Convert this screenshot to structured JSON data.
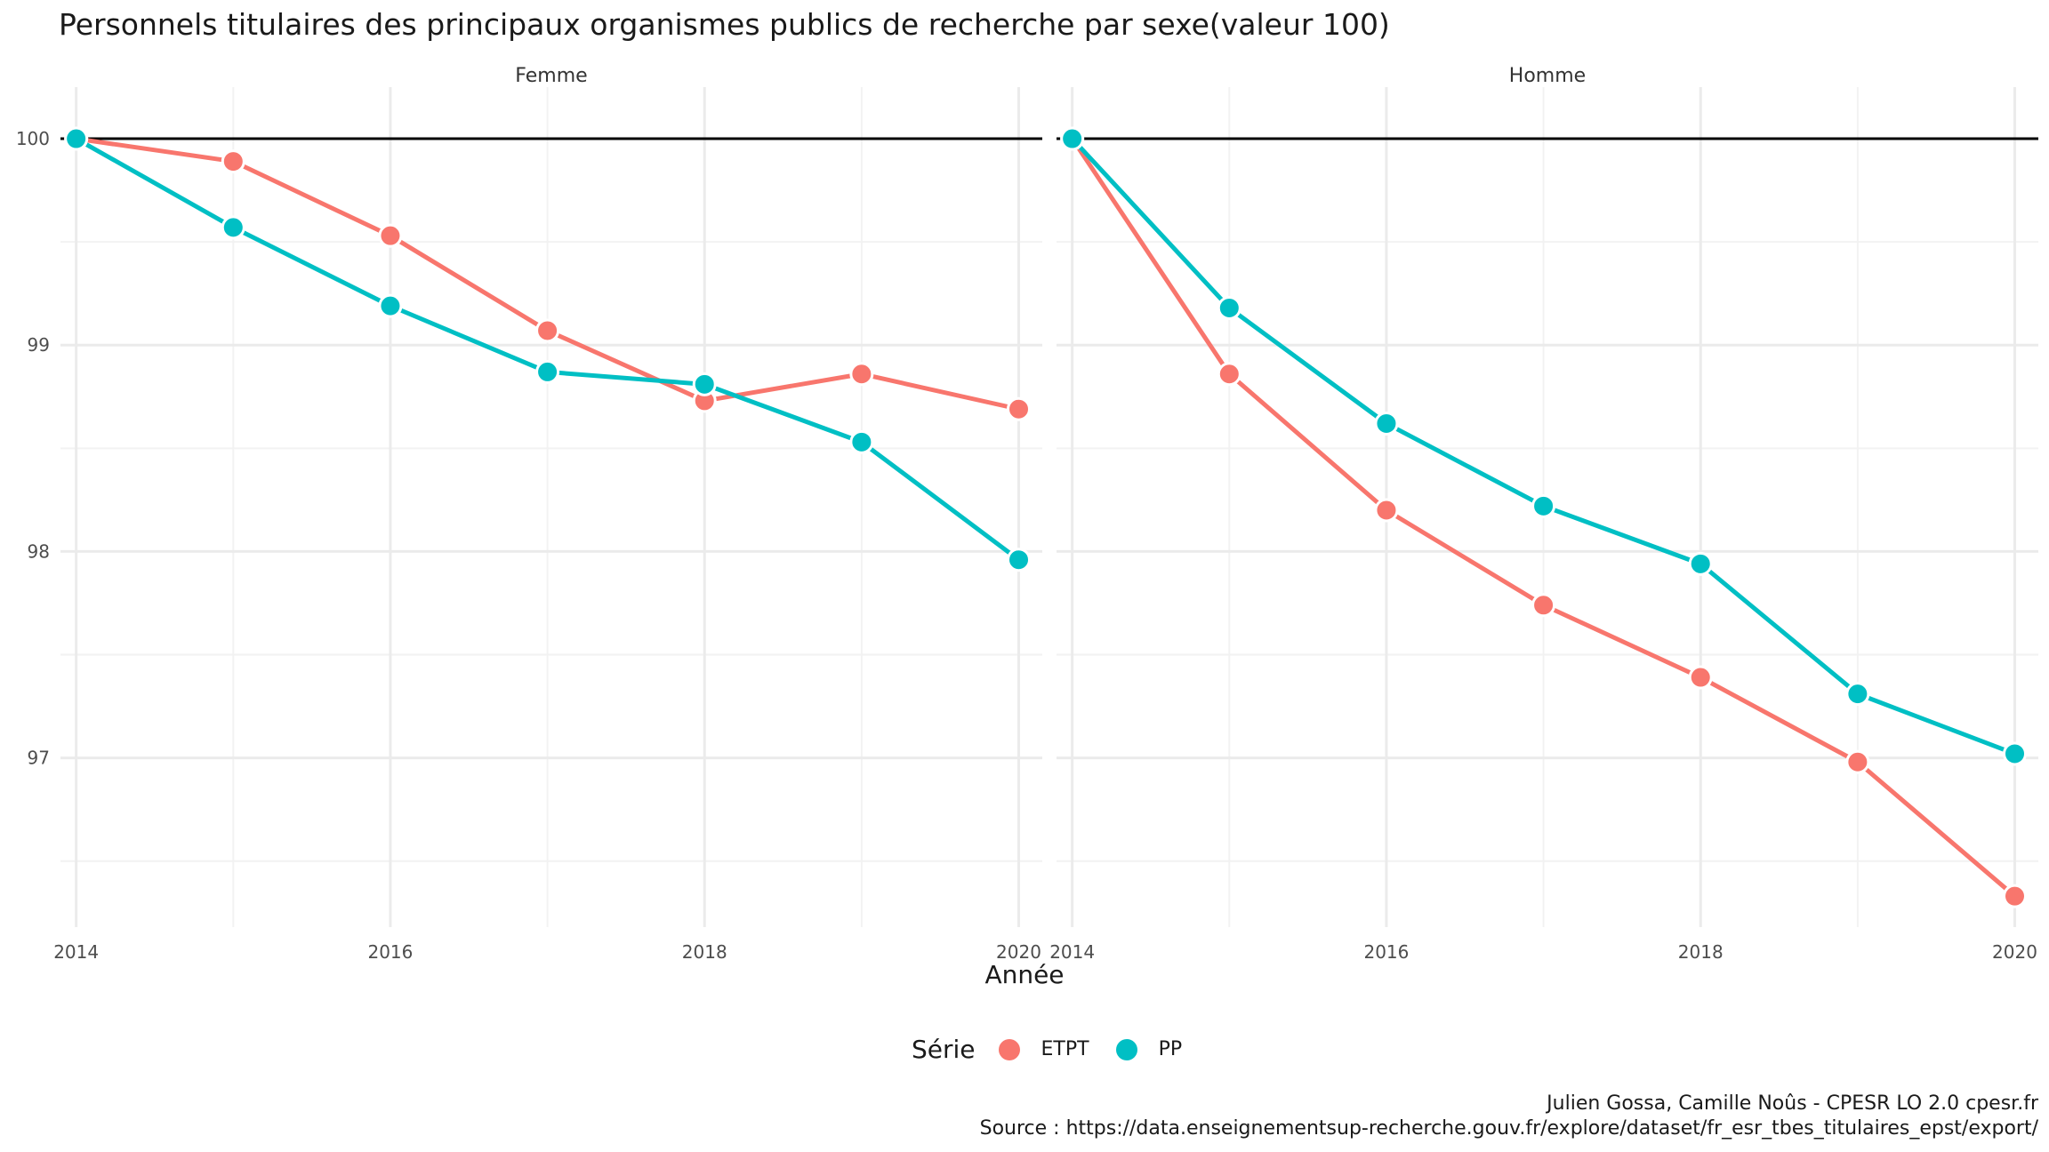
{
  "title": "Personnels titulaires des principaux organismes publics de recherche par sexe(valeur 100)",
  "xlabel": "Année",
  "legend": {
    "title": "Série",
    "items": [
      {
        "label": "ETPT",
        "color": "#F8766D"
      },
      {
        "label": "PP",
        "color": "#00BFC4"
      }
    ]
  },
  "caption": {
    "line1": "Julien Gossa, Camille Noûs - CPESR LO 2.0 cpesr.fr",
    "line2": "Source : https://data.enseignementsup-recherche.gouv.fr/explore/dataset/fr_esr_tbes_titulaires_epst/export/"
  },
  "chart_data": {
    "type": "line",
    "title": "Personnels titulaires des principaux organismes publics de recherche par sexe(valeur 100)",
    "xlabel": "Année",
    "ylabel": "",
    "x": [
      2014,
      2015,
      2016,
      2017,
      2018,
      2019,
      2020
    ],
    "xticks": [
      2014,
      2016,
      2018,
      2020
    ],
    "yticks": [
      97,
      98,
      99,
      100
    ],
    "xlim": [
      2013.9,
      2020.15
    ],
    "ylim": [
      96.18,
      100.25
    ],
    "reference_line": 100,
    "grid": true,
    "legend_position": "bottom",
    "panels": [
      {
        "name": "Femme",
        "series": [
          {
            "name": "ETPT",
            "color": "#F8766D",
            "values": [
              100.0,
              99.89,
              99.53,
              99.07,
              98.73,
              98.86,
              98.69
            ]
          },
          {
            "name": "PP",
            "color": "#00BFC4",
            "values": [
              100.0,
              99.57,
              99.19,
              98.87,
              98.81,
              98.53,
              97.96
            ]
          }
        ]
      },
      {
        "name": "Homme",
        "series": [
          {
            "name": "ETPT",
            "color": "#F8766D",
            "values": [
              100.0,
              98.86,
              98.2,
              97.74,
              97.39,
              96.98,
              96.33
            ]
          },
          {
            "name": "PP",
            "color": "#00BFC4",
            "values": [
              100.0,
              99.18,
              98.62,
              98.22,
              97.94,
              97.31,
              97.02
            ]
          }
        ]
      }
    ]
  }
}
